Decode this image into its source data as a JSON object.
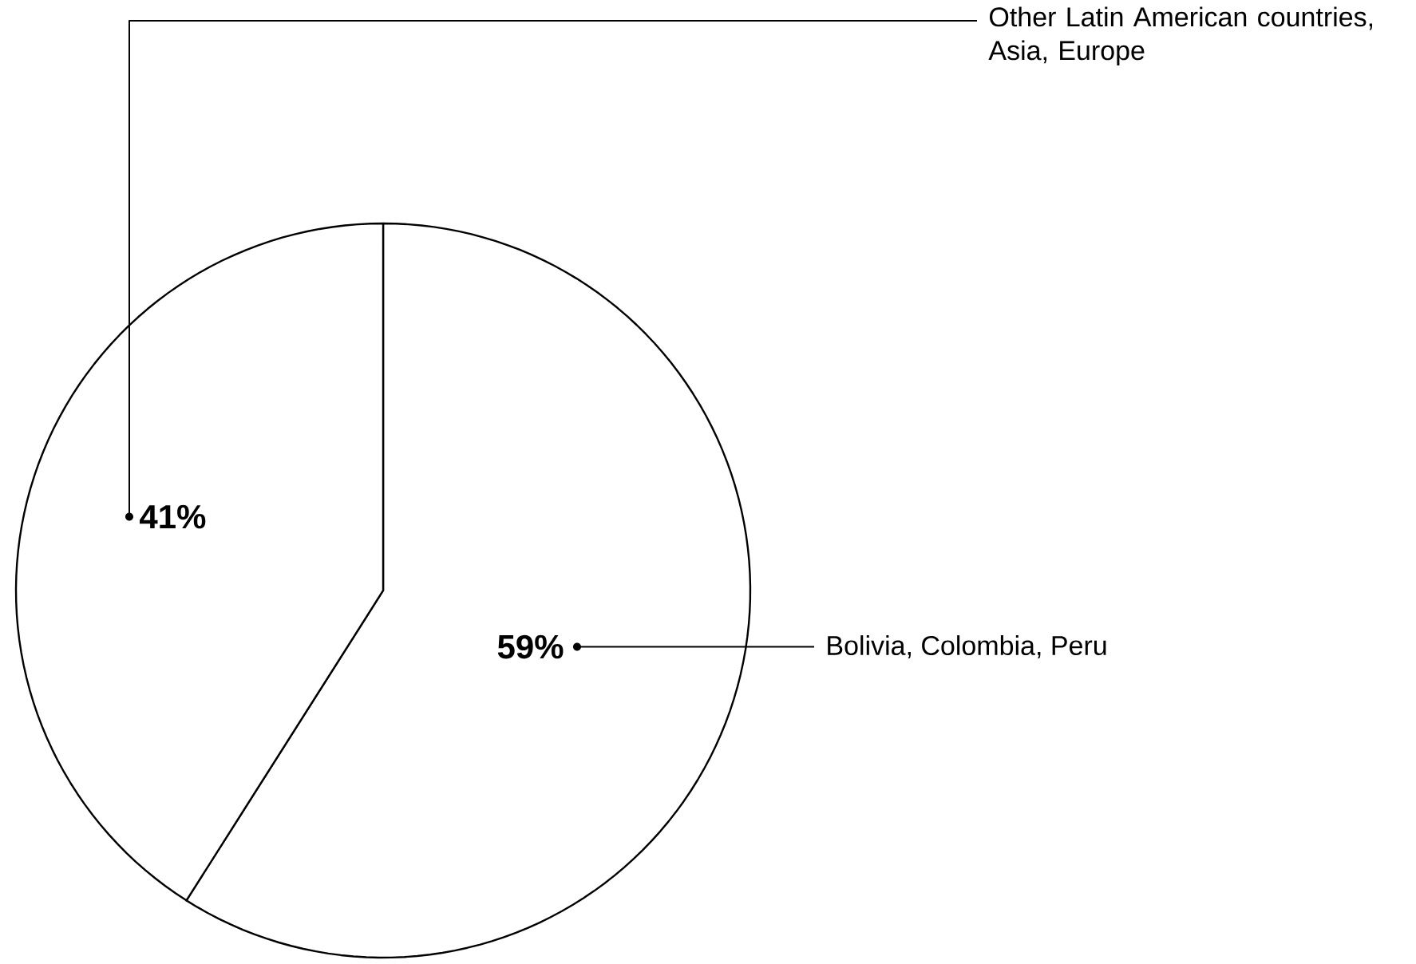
{
  "chart_data": {
    "type": "pie",
    "categories": [
      "Bolivia, Colombia, Peru",
      "Other Latin American countries, Asia, Europe"
    ],
    "values": [
      59,
      41
    ],
    "colors": [
      "#ffffff",
      "#ffffff"
    ],
    "value_labels": [
      "59%",
      "41%"
    ]
  }
}
